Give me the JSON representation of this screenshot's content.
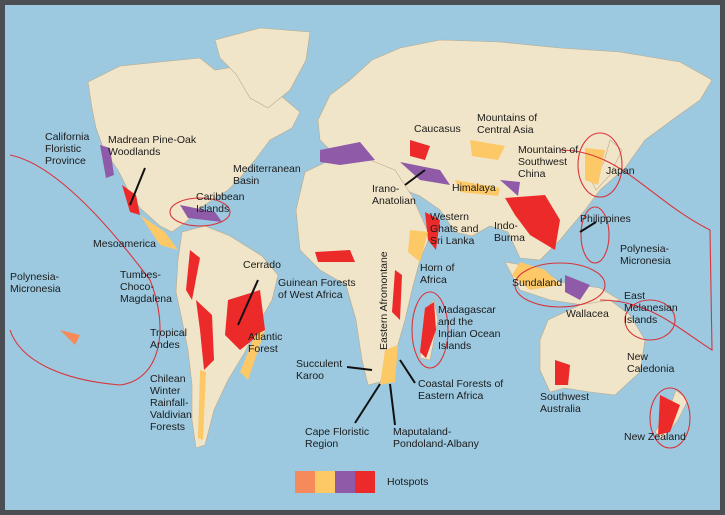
{
  "colors": {
    "ocean": "#9cc9e0",
    "land": "#f1e5c9",
    "hotspots": [
      "#f68a5a",
      "#fdc866",
      "#8f5ba8",
      "#ec2a2a"
    ],
    "boundary": "#d9343a"
  },
  "labels": {
    "california": "California\nFloristic\nProvince",
    "madrean": "Madrean Pine-Oak\nWoodlands",
    "caribbean": "Caribbean\nIslands",
    "mesoamerica": "Mesoamerica",
    "tumbes": "Tumbes-\nChoco-\nMagdalena",
    "polynesia_west": "Polynesia-\nMicronesia",
    "cerrado": "Cerrado",
    "tropical_andes": "Tropical\nAndes",
    "chilean": "Chilean\nWinter\nRainfall-\nValdivian\nForests",
    "atlantic": "Atlantic\nForest",
    "mediterranean": "Mediterranean\nBasin",
    "guinean": "Guinean Forests\nof West Africa",
    "caucasus": "Caucasus",
    "central_asia": "Mountains of\nCentral Asia",
    "sw_china": "Mountains of\nSouthwest\nChina",
    "japan": "Japan",
    "irano": "Irano-\nAnatolian",
    "himalaya": "Himalaya",
    "ghats": "Western\nGhats and\nSri Lanka",
    "indo_burma": "Indo-\nBurma",
    "philippines": "Philippines",
    "polynesia_east": "Polynesia-\nMicronesia",
    "horn": "Horn of\nAfrica",
    "sundaland": "Sundaland",
    "afromontane": "Eastern Afromontane",
    "madagascar": "Madagascar\nand the\nIndian Ocean\nIslands",
    "melanesian": "East\nMelanesian\nIslands",
    "wallacea": "Wallacea",
    "new_caledonia": "New\nCaledonia",
    "karoo": "Succulent\nKaroo",
    "coastal_ea": "Coastal Forests of\nEastern Africa",
    "sw_australia": "Southwest\nAustralia",
    "cape": "Cape Floristic\nRegion",
    "maputaland": "Maputaland-\nPondoland-Albany",
    "new_zealand": "New Zealand"
  },
  "legend": {
    "label": "Hotspots"
  }
}
